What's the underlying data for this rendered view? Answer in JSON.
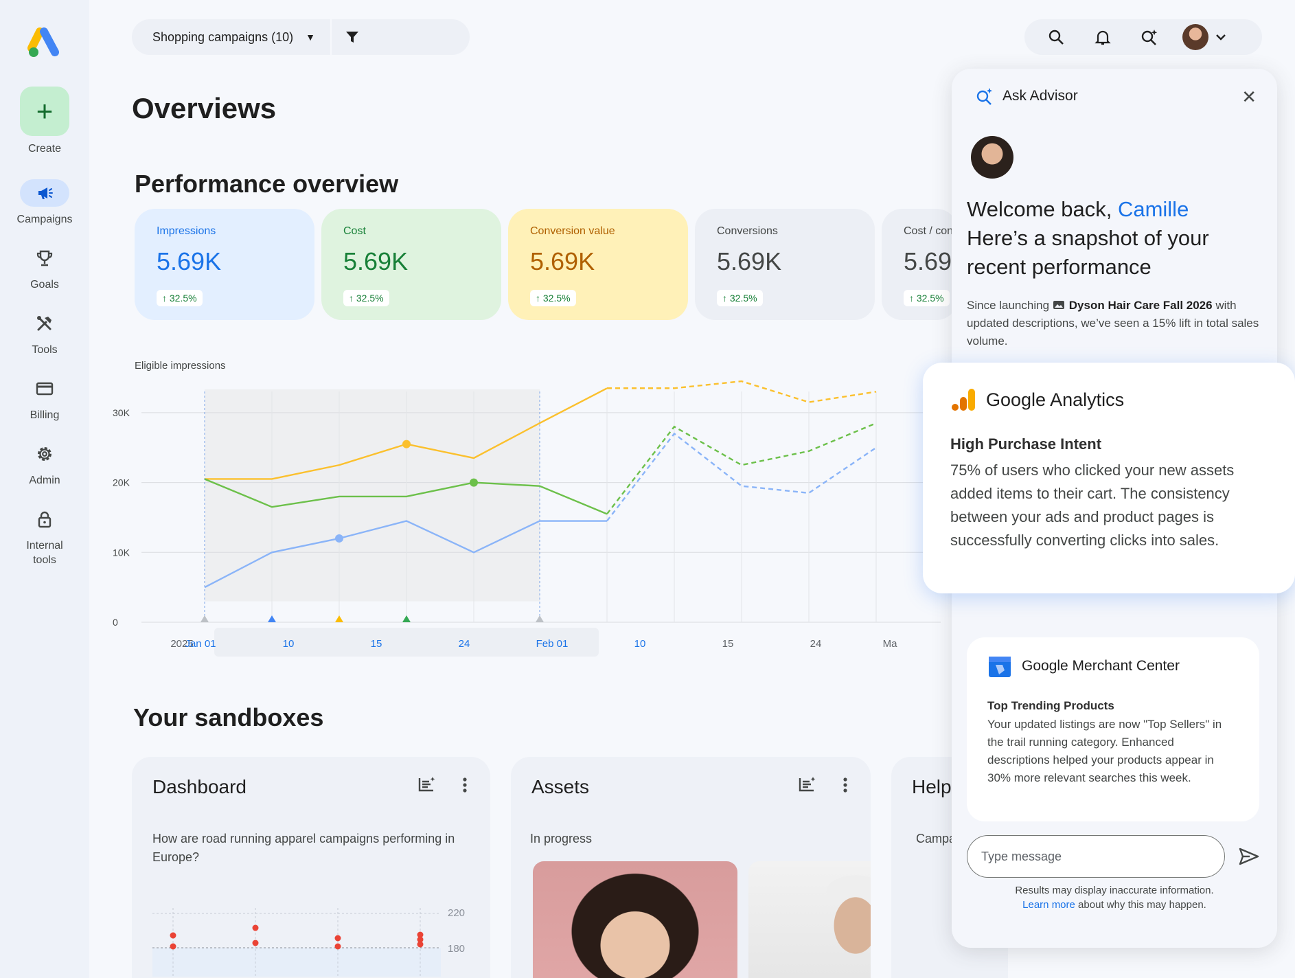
{
  "colors": {
    "impressions_bg": "#e3efff",
    "impressions_fg": "#1a73e8",
    "cost_bg": "#dff3df",
    "cost_fg": "#188038",
    "conv_value_bg": "#fff1b8",
    "conv_value_fg": "#b06000",
    "neutral_bg": "#eceff5",
    "neutral_fg": "#444746",
    "line_blue": "#8ab4f8",
    "line_green": "#6cc04a",
    "line_yellow": "#fbc02d"
  },
  "nav": {
    "create_label": "Create",
    "items": [
      {
        "label": "Campaigns",
        "icon": "campaigns-icon",
        "active": true
      },
      {
        "label": "Goals",
        "icon": "trophy-icon"
      },
      {
        "label": "Tools",
        "icon": "tools-icon"
      },
      {
        "label": "Billing",
        "icon": "billing-icon"
      },
      {
        "label": "Admin",
        "icon": "gear-icon"
      },
      {
        "label": "Internal\ntools",
        "icon": "lock-icon"
      }
    ]
  },
  "topbar": {
    "campaign_selector": "Shopping campaigns (10)"
  },
  "page": {
    "title": "Overviews",
    "performance_title": "Performance overview",
    "sandboxes_title": "Your sandboxes"
  },
  "kpis": [
    {
      "label": "Impressions",
      "value": "5.69K",
      "change": "↑ 32.5%"
    },
    {
      "label": "Cost",
      "value": "5.69K",
      "change": "↑ 32.5%"
    },
    {
      "label": "Conversion value",
      "value": "5.69K",
      "change": "↑ 32.5%"
    },
    {
      "label": "Conversions",
      "value": "5.69K",
      "change": "↑ 32.5%"
    },
    {
      "label": "Cost / con",
      "value": "5.69",
      "change": "↑ 32.5%"
    }
  ],
  "chart_data": {
    "type": "line",
    "ylabel": "Eligible impressions",
    "ylim": [
      0,
      35000
    ],
    "yticks": [
      "0",
      "10K",
      "20K",
      "30K"
    ],
    "xticks": [
      "2025",
      "Jan 01",
      "10",
      "15",
      "24",
      "Feb 01",
      "10",
      "15",
      "24",
      "Ma"
    ],
    "series": [
      {
        "values": [
          20500,
          20500,
          22500,
          25500,
          23500,
          28500,
          33500,
          33500,
          34500,
          31500,
          33000
        ],
        "dashed_from": 6
      },
      {
        "values": [
          20500,
          16500,
          18000,
          18000,
          20000,
          19500,
          15500,
          28000,
          22500,
          24500,
          28500
        ],
        "dashed_from": 6
      },
      {
        "values": [
          5000,
          10000,
          12000,
          14500,
          10000,
          14500,
          14500,
          27000,
          19500,
          18500,
          25000
        ],
        "dashed_from": 6
      }
    ]
  },
  "sandboxes": [
    {
      "title": "Dashboard",
      "body": "How are road running apparel campaigns performing in Europe?",
      "y_ticks": [
        "220",
        "180"
      ]
    },
    {
      "title": "Assets",
      "body": "In progress"
    },
    {
      "title": "Help",
      "body": "Campa"
    }
  ],
  "advisor": {
    "title": "Ask Advisor",
    "welcome_prefix": "Welcome back, ",
    "user_name": "Camille",
    "welcome_rest": "Here’s a snapshot of your recent performance",
    "since_prefix": "Since launching ",
    "campaign_name": "Dyson Hair Care Fall 2026",
    "since_suffix": " with updated descriptions, we’ve seen a 15% lift in total sales volume.",
    "analytics": {
      "title": "Google Analytics",
      "subtitle": "High Purchase Intent",
      "body": "75% of users who clicked your new assets added items to their cart. The consistency between your ads and product pages is successfully converting clicks into sales."
    },
    "merchant": {
      "title": "Google Merchant Center",
      "subtitle": "Top Trending Products",
      "body": "Your updated listings are now \"Top Sellers\" in the trail running category. Enhanced descriptions helped your products appear in 30% more relevant searches this week."
    },
    "input_placeholder": "Type message",
    "disclaimer_line1": "Results may display inaccurate information.",
    "learn_more": "Learn more",
    "disclaimer_line2": " about why this may happen."
  }
}
